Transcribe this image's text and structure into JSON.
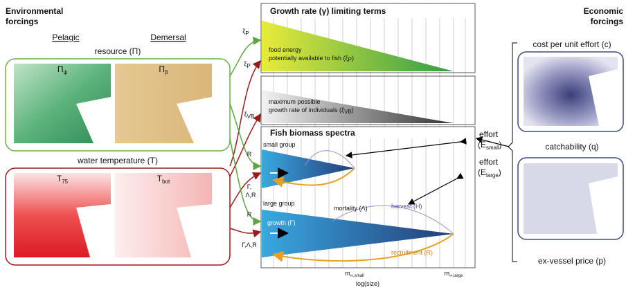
{
  "environmental": {
    "title_lines": [
      "Environmental",
      "forcings"
    ],
    "pelagic": "Pelagic",
    "demersal": "Demersal",
    "resource": "resource (Π)",
    "resource_maps": [
      {
        "label": "Π",
        "sub": "ψ"
      },
      {
        "label": "Π",
        "sub": "β"
      }
    ],
    "temperature": "water temperature (T)",
    "temperature_maps": [
      {
        "label": "T",
        "sub": "75"
      },
      {
        "label": "T",
        "sub": "bot"
      }
    ]
  },
  "links": [
    {
      "label": "ξ",
      "sub": "P"
    },
    {
      "label": "ξ",
      "sub": "P"
    },
    {
      "label": "ξ",
      "sub": "VB"
    },
    {
      "label": "R"
    },
    {
      "label_lines": [
        "Γ,",
        "Λ,R"
      ]
    },
    {
      "label": "R"
    },
    {
      "label": "Γ,Λ,R"
    }
  ],
  "growth_panel": {
    "title": "Growth rate (γ) limiting terms",
    "food": {
      "line1": "food energy",
      "line2": "potentially available to fish (ξ",
      "sub": "P",
      "close": ")"
    },
    "max_growth": {
      "line1": "maximum possible",
      "line2": "growth rate of individuals (ξ",
      "sub": "VB",
      "close": ")"
    }
  },
  "biomass_panel": {
    "title": "Fish biomass spectra",
    "small_group": "small group",
    "large_group": "large group",
    "mortality": "mortality (Λ)",
    "harvest": "harvest (H)",
    "growth": "growth (Γ)",
    "recruitment": "recruitment (R)",
    "x_labels": [
      {
        "label": "m",
        "sub": "∞,small"
      },
      {
        "label": "m",
        "sub": "∞,large"
      }
    ],
    "x_axis": "log(size)"
  },
  "effort": [
    {
      "line1": "effort",
      "line2": "(E",
      "sub": "small",
      "close": ")"
    },
    {
      "line1": "effort",
      "line2": "(E",
      "sub": "large",
      "close": ")"
    }
  ],
  "economic": {
    "title_lines": [
      "Economic",
      "forcings"
    ],
    "cost": "cost per unit effort (c)",
    "catchability": "catchability (q)",
    "price": "ex-vessel price (p)"
  }
}
